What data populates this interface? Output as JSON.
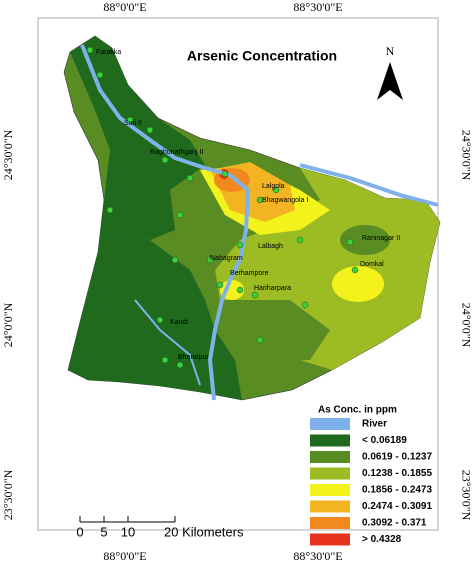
{
  "title": "Arsenic Concentration",
  "north_label": "N",
  "coordinates": {
    "top": [
      "88°0'0\"E",
      "88°30'0\"E"
    ],
    "bottom": [
      "88°0'0\"E",
      "88°30'0\"E"
    ],
    "left": [
      "24°30'0\"N",
      "24°0'0\"N",
      "23°30'0\"N"
    ],
    "right": [
      "24°30'0\"N",
      "24°0'0\"N",
      "23°30'0\"N"
    ]
  },
  "places": [
    "Farakka",
    "Suti II",
    "Raghunathganj II",
    "Lalgola",
    "Bhagwangola I",
    "Raninagar II",
    "Lalbagh",
    "Nabagram",
    "Domkal",
    "Berhampore",
    "Hariharpara",
    "Kandi",
    "Bharatpur"
  ],
  "legend": {
    "title": "As Conc. in ppm",
    "items": [
      {
        "label": "River",
        "color": "#7fb2ea"
      },
      {
        "label": "< 0.06189",
        "color": "#1f6a1c"
      },
      {
        "label": "0.0619 - 0.1237",
        "color": "#5a8c24"
      },
      {
        "label": "0.1238 - 0.1855",
        "color": "#9dbb22"
      },
      {
        "label": "0.1856 - 0.2473",
        "color": "#f3f21c"
      },
      {
        "label": "0.2474 - 0.3091",
        "color": "#f3b424"
      },
      {
        "label": "0.3092 - 0.371",
        "color": "#f2891e"
      },
      {
        "label": "> 0.4328",
        "color": "#e6341c"
      }
    ]
  },
  "scale_bar": {
    "labels": [
      "0",
      "5",
      "10",
      "20 Kilometers"
    ]
  }
}
